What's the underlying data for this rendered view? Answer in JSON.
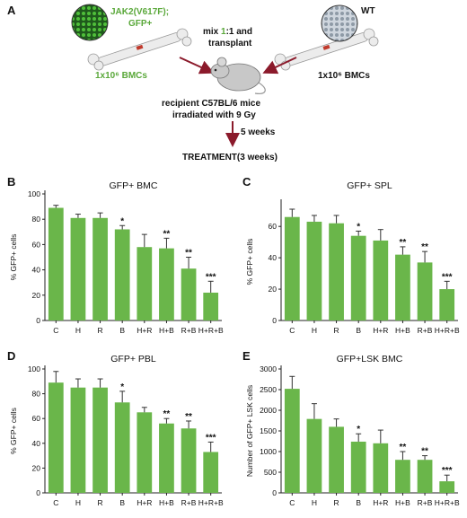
{
  "schematic": {
    "panel_letter": "A",
    "left_label_line1": "JAK2(V617F);",
    "left_label_line2": "GFP+",
    "right_label": "WT",
    "mix_line1_pre": "mix ",
    "mix_line1_green": "1",
    "mix_line1_post": ":1 and",
    "mix_line2": "transplant",
    "left_bmc": "1x10⁶ BMCs",
    "right_bmc": "1x10⁶ BMCs",
    "recipient_line1": "recipient C57BL/6 mice",
    "recipient_line2": "irradiated with 9 Gy",
    "weeks": "5 weeks",
    "treatment": "TREATMENT(3 weeks)",
    "colors": {
      "green": "#5aa83a",
      "arrow": "#8b1a2b",
      "bone": "#e8e8e8"
    }
  },
  "chart_data": [
    {
      "panel": "B",
      "type": "bar",
      "title": "GFP+ BMC",
      "ylabel": "% GFP+ cells",
      "categories": [
        "C",
        "H",
        "R",
        "B",
        "H+R",
        "H+B",
        "R+B",
        "H+R+B"
      ],
      "values": [
        89,
        81,
        81,
        72,
        58,
        57,
        41,
        22
      ],
      "errors": [
        2,
        3,
        4,
        3,
        10,
        8,
        9,
        9
      ],
      "significance": [
        "",
        "",
        "",
        "*",
        "",
        "**",
        "**",
        "***"
      ],
      "ylim": [
        0,
        100
      ],
      "yticks": [
        0,
        20,
        40,
        60,
        80,
        100
      ],
      "color": "#6ab64a"
    },
    {
      "panel": "C",
      "type": "bar",
      "title": "GFP+ SPL",
      "ylabel": "% GFP+ cells",
      "categories": [
        "C",
        "H",
        "R",
        "B",
        "H+R",
        "H+B",
        "R+B",
        "H+R+B"
      ],
      "values": [
        66,
        63,
        62,
        54,
        51,
        42,
        37,
        20
      ],
      "errors": [
        5,
        4,
        5,
        3,
        7,
        5,
        7,
        5
      ],
      "significance": [
        "",
        "",
        "",
        "*",
        "",
        "**",
        "**",
        "***"
      ],
      "ylim": [
        0,
        75
      ],
      "yticks": [
        0,
        20,
        40,
        60
      ],
      "color": "#6ab64a"
    },
    {
      "panel": "D",
      "type": "bar",
      "title": "GFP+ PBL",
      "ylabel": "% GFP+ cells",
      "categories": [
        "C",
        "H",
        "R",
        "B",
        "H+R",
        "H+B",
        "R+B",
        "H+R+B"
      ],
      "values": [
        89,
        85,
        85,
        73,
        65,
        56,
        52,
        33
      ],
      "errors": [
        9,
        7,
        7,
        9,
        4,
        4,
        6,
        8
      ],
      "significance": [
        "",
        "",
        "",
        "*",
        "",
        "**",
        "**",
        "***"
      ],
      "ylim": [
        0,
        100
      ],
      "yticks": [
        0,
        20,
        40,
        60,
        80,
        100
      ],
      "color": "#6ab64a"
    },
    {
      "panel": "E",
      "type": "bar",
      "title": "GFP+LSK BMC",
      "ylabel": "Number of GFP+ LSK cells",
      "categories": [
        "C",
        "H",
        "R",
        "B",
        "H+R",
        "H+B",
        "R+B",
        "H+R+B"
      ],
      "values": [
        2520,
        1790,
        1600,
        1240,
        1200,
        800,
        800,
        280
      ],
      "errors": [
        300,
        370,
        190,
        190,
        320,
        200,
        100,
        150
      ],
      "significance": [
        "",
        "",
        "",
        "*",
        "",
        "**",
        "**",
        "***"
      ],
      "ylim": [
        0,
        3000
      ],
      "yticks": [
        0,
        500,
        1000,
        1500,
        2000,
        2500,
        3000
      ],
      "color": "#6ab64a"
    }
  ]
}
